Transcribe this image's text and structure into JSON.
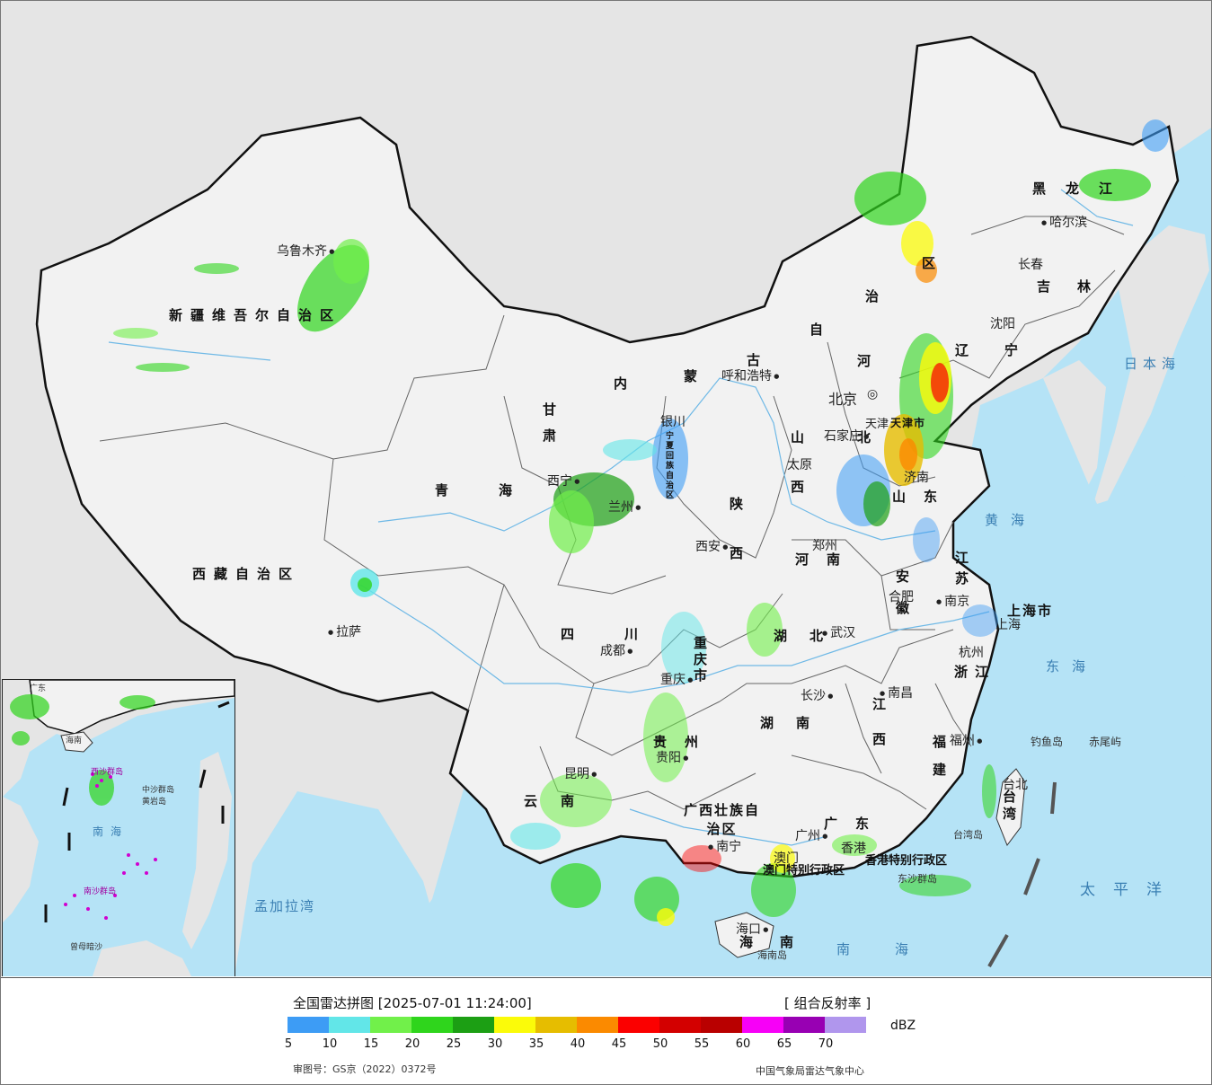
{
  "map": {
    "provinces": {
      "xinjiang": "新疆维吾尔自治区",
      "xizang": "西藏自治区",
      "qinghai": "青海",
      "gansu": "甘肃",
      "sichuan": "四川",
      "yunnan": "云南",
      "guizhou": "贵州",
      "guangxi": "广西壮族自治区",
      "guangdong": "广东",
      "hunan": "湖南",
      "hubei": "湖北",
      "jiangxi": "江西",
      "fujian": "福建",
      "zhejiang": "浙江",
      "anhui": "安徽",
      "jiangsu": "江苏",
      "shandong": "山东",
      "henan": "河南",
      "shaanxi": "陕西",
      "shanxi": "山西",
      "hebei": "河北",
      "neimenggu_1": "内",
      "neimenggu_2": "蒙",
      "neimenggu_3": "古",
      "neimenggu_4": "自",
      "neimenggu_5": "治",
      "neimenggu_6": "区",
      "liaoning": "辽宁",
      "jilin": "吉林",
      "heilongjiang": "黑龙江",
      "chongqing": "重庆市",
      "ningxia": "宁夏回族自治区",
      "tianjin": "天津市",
      "shanghai": "上海市",
      "taiwan": "台湾",
      "hainan": "海南",
      "hongkong": "香港特别行政区",
      "macau": "澳门特别行政区"
    },
    "cities": {
      "urumqi": "乌鲁木齐",
      "lhasa": "拉萨",
      "xining": "西宁",
      "lanzhou": "兰州",
      "yinchuan": "银川",
      "chengdu": "成都",
      "chongqing": "重庆",
      "kunming": "昆明",
      "guiyang": "贵阳",
      "nanning": "南宁",
      "guangzhou": "广州",
      "hongkong": "香港",
      "macau": "澳门",
      "haikou": "海口",
      "changsha": "长沙",
      "wuhan": "武汉",
      "nanchang": "南昌",
      "fuzhou": "福州",
      "taipei": "台北",
      "hangzhou": "杭州",
      "hefei": "合肥",
      "nanjing": "南京",
      "shanghai": "上海",
      "jinan": "济南",
      "zhengzhou": "郑州",
      "xian": "西安",
      "taiyuan": "太原",
      "shijiazhuang": "石家庄",
      "hohhot": "呼和浩特",
      "beijing": "北京",
      "tianjin": "天津",
      "shenyang": "沈阳",
      "changchun": "长春",
      "harbin": "哈尔滨"
    },
    "seas": {
      "japan_sea": "日本海",
      "yellow_sea": "黄海",
      "east_sea": "东海",
      "pacific": "太平洋",
      "south_sea": "南海",
      "bengal": "孟加拉湾"
    },
    "islands": {
      "diaoyu": "钓鱼岛",
      "chiwei": "赤尾屿",
      "taiwan_island": "台湾岛",
      "hainan_island": "海南岛",
      "dongsha": "东沙群岛"
    },
    "inset": {
      "xisha": "西沙群岛",
      "zhongsha": "中沙群岛",
      "huangyan": "黄岩岛",
      "nansha": "南沙群岛",
      "zengmu": "曾母暗沙",
      "south_sea": "南海",
      "guangdong": "广东",
      "hainan": "海南"
    }
  },
  "legend": {
    "title": "全国雷达拼图 [2025-07-01 11:24:00]",
    "product": "[ 组合反射率 ]",
    "unit": "dBZ",
    "ticks": [
      "5",
      "10",
      "15",
      "20",
      "25",
      "30",
      "35",
      "40",
      "45",
      "50",
      "55",
      "60",
      "65",
      "70"
    ],
    "colors": [
      "#3d9cf5",
      "#62e6e8",
      "#71f04a",
      "#2fd51c",
      "#1c9f14",
      "#fbfb09",
      "#e6bd00",
      "#fb8a00",
      "#fb0000",
      "#d30000",
      "#b90000",
      "#f700f7",
      "#9800b3",
      "#b096ed"
    ],
    "approval": "审图号：GS京（2022）0372号",
    "agency": "中国气象局雷达气象中心"
  }
}
